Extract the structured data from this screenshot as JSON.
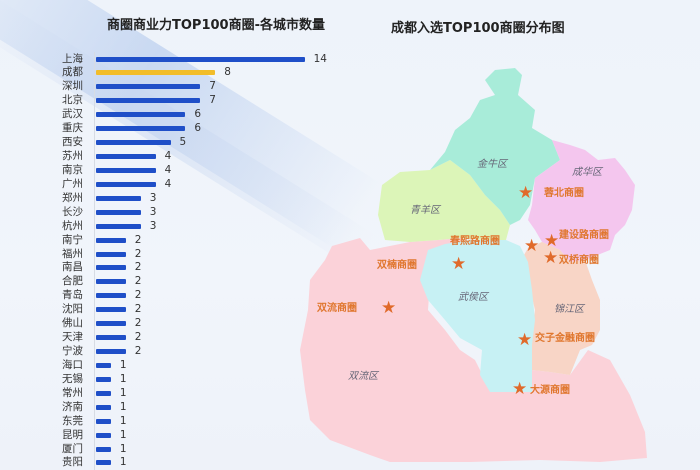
{
  "left_chart": {
    "title": "商圈商业力TOP100商圈-各城市数量"
  },
  "right_map": {
    "title": "成都入选TOP100商圈分布图",
    "districts": [
      {
        "name": "金牛区",
        "color": "#a8ecd9"
      },
      {
        "name": "成华区",
        "color": "#f4c6ee"
      },
      {
        "name": "青羊区",
        "color": "#dcf5b8"
      },
      {
        "name": "武侯区",
        "color": "#c7f1f4"
      },
      {
        "name": "锦江区",
        "color": "#f8d5c6"
      },
      {
        "name": "双流区",
        "color": "#fbd2d9"
      }
    ],
    "business_districts": [
      "蓉北商圈",
      "春熙路商圈",
      "建设路商圈",
      "双楠商圈",
      "双桥商圈",
      "双流商圈",
      "交子金融商圈",
      "大源商圈"
    ],
    "star_color": "#e06a2a",
    "label_color": "#e0772f"
  },
  "chart_data": {
    "type": "bar",
    "orientation": "horizontal",
    "title": "商圈商业力TOP100商圈-各城市数量",
    "xlabel": "",
    "ylabel": "",
    "categories": [
      "上海",
      "成都",
      "深圳",
      "北京",
      "武汉",
      "重庆",
      "西安",
      "苏州",
      "南京",
      "广州",
      "郑州",
      "长沙",
      "杭州",
      "南宁",
      "福州",
      "南昌",
      "合肥",
      "青岛",
      "沈阳",
      "佛山",
      "天津",
      "宁波",
      "海口",
      "无锡",
      "常州",
      "济南",
      "东莞",
      "昆明",
      "厦门",
      "贵阳"
    ],
    "values": [
      14,
      8,
      7,
      7,
      6,
      6,
      5,
      4,
      4,
      4,
      3,
      3,
      3,
      2,
      2,
      2,
      2,
      2,
      2,
      2,
      2,
      2,
      1,
      1,
      1,
      1,
      1,
      1,
      1,
      1
    ],
    "highlight": "成都",
    "bar_color": "#1f4fc8",
    "highlight_color": "#f2bd2a",
    "grid": false,
    "legend": "none"
  }
}
